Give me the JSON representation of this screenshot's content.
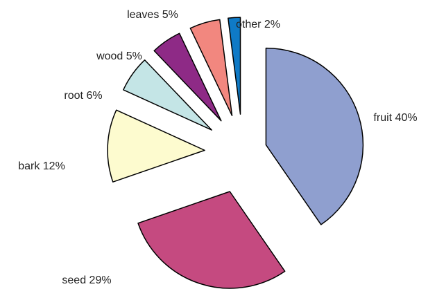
{
  "chart_data": {
    "type": "pie",
    "title": "",
    "exploded": true,
    "slices": [
      {
        "category": "fruit",
        "value": 40,
        "label": "fruit 40%",
        "color": "#8f9fcf"
      },
      {
        "category": "seed",
        "value": 29,
        "label": "seed 29%",
        "color": "#c54a80"
      },
      {
        "category": "bark",
        "value": 12,
        "label": "bark 12%",
        "color": "#fdfbcf"
      },
      {
        "category": "root",
        "value": 6,
        "label": "root 6%",
        "color": "#c4e5e6"
      },
      {
        "category": "wood",
        "value": 5,
        "label": "wood 5%",
        "color": "#8e2a86"
      },
      {
        "category": "leaves",
        "value": 5,
        "label": "leaves 5%",
        "color": "#f2877f"
      },
      {
        "category": "other",
        "value": 2,
        "label": "other 2%",
        "color": "#0f7ac6"
      }
    ]
  }
}
